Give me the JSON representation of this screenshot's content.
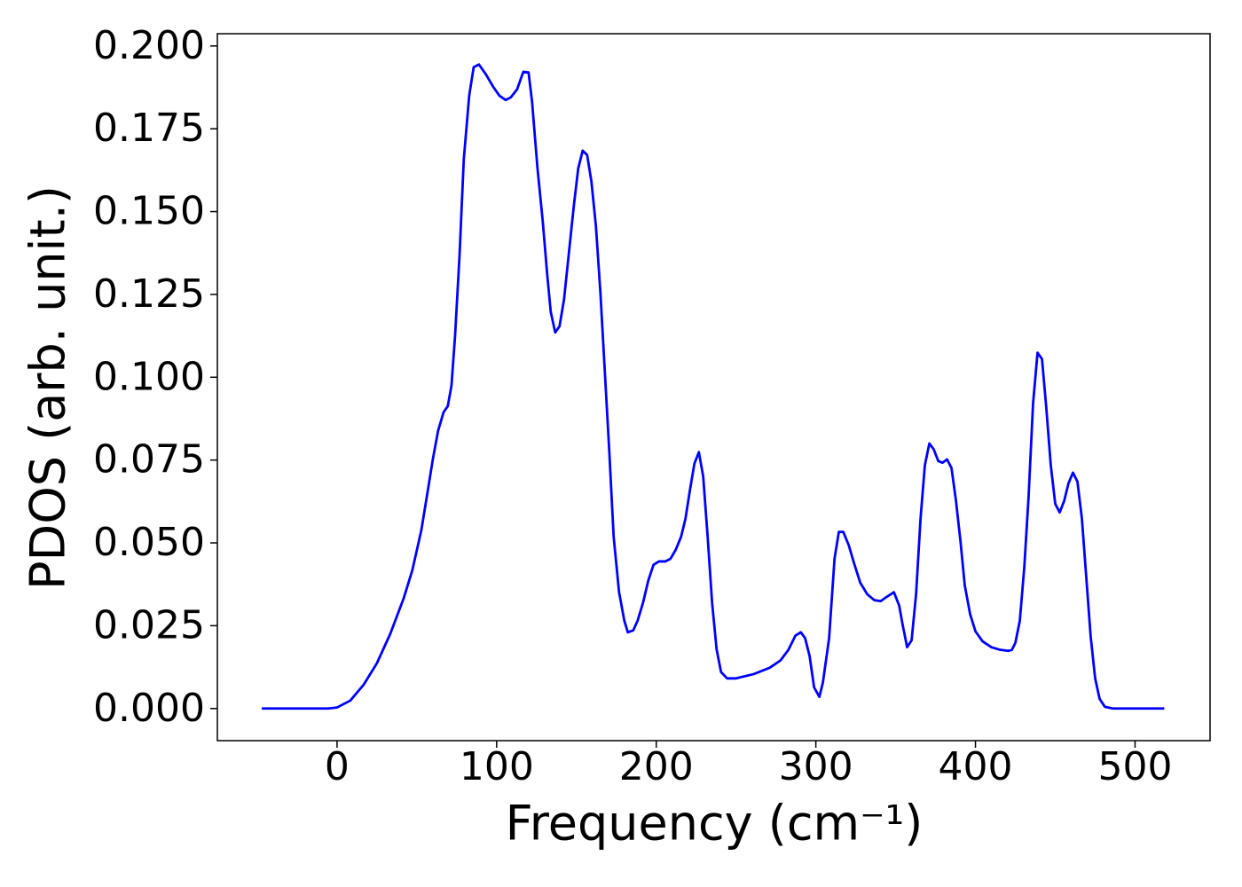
{
  "chart_data": {
    "type": "line",
    "xlabel": "Frequency (cm⁻¹)",
    "ylabel": "PDOS (arb. unit.)",
    "x": [
      -47.2,
      -5.6,
      0,
      8.3,
      16.7,
      25,
      33.3,
      41.7,
      47.2,
      52.8,
      56.7,
      60,
      63.3,
      66.7,
      69.4,
      71.7,
      73.9,
      76.7,
      79.4,
      82.8,
      85.6,
      88.9,
      93.3,
      97.8,
      101.7,
      105.6,
      108.9,
      112.8,
      116.7,
      120,
      122.2,
      125.6,
      128.9,
      131.7,
      133.9,
      136.7,
      139.4,
      142.2,
      145,
      148.3,
      151.1,
      153.9,
      156.7,
      159.4,
      162.2,
      165,
      167.8,
      170.6,
      173.3,
      176.7,
      180,
      182.2,
      185.6,
      188.3,
      191.7,
      195,
      198.3,
      201.7,
      205.6,
      208.9,
      212.2,
      215.6,
      218.3,
      221.1,
      223.9,
      226.7,
      229.4,
      232.2,
      235,
      237.8,
      240.6,
      244.4,
      250,
      261.1,
      271.1,
      277.8,
      282.8,
      287.2,
      290.6,
      293.3,
      296.1,
      298.9,
      302.2,
      304.4,
      308.3,
      311.7,
      314.4,
      317.2,
      320.6,
      323.9,
      327.8,
      332.2,
      336.7,
      340.6,
      344.4,
      348.9,
      352.2,
      354.4,
      357.2,
      360,
      362.8,
      365.6,
      368.3,
      371.1,
      373.9,
      376.7,
      379.4,
      382.2,
      385,
      387.8,
      390.6,
      393.3,
      396.7,
      400,
      404.4,
      410,
      415.6,
      420.6,
      422.8,
      425,
      427.8,
      430.6,
      433.3,
      436.1,
      438.9,
      441.7,
      444.4,
      447.2,
      450,
      452.8,
      455.6,
      458.3,
      461.1,
      463.9,
      466.7,
      469.4,
      472.2,
      475,
      477.8,
      481.1,
      486.1,
      518.3
    ],
    "series": [
      {
        "color": "#0000ff",
        "values": [
          0,
          0,
          0.0003,
          0.0024,
          0.0072,
          0.0137,
          0.0225,
          0.0332,
          0.0418,
          0.0538,
          0.0653,
          0.0752,
          0.0838,
          0.0894,
          0.0913,
          0.0975,
          0.1122,
          0.1363,
          0.1657,
          0.185,
          0.1936,
          0.1944,
          0.1914,
          0.1877,
          0.185,
          0.1837,
          0.1845,
          0.1869,
          0.1922,
          0.192,
          0.1831,
          0.163,
          0.147,
          0.1309,
          0.1197,
          0.1135,
          0.1154,
          0.1234,
          0.1363,
          0.1515,
          0.163,
          0.1684,
          0.1671,
          0.159,
          0.1456,
          0.1256,
          0.1015,
          0.0774,
          0.0519,
          0.0351,
          0.0265,
          0.023,
          0.0236,
          0.0265,
          0.0319,
          0.0386,
          0.0434,
          0.0444,
          0.0444,
          0.0452,
          0.0479,
          0.0519,
          0.0573,
          0.0659,
          0.0739,
          0.0774,
          0.0701,
          0.0519,
          0.0319,
          0.0179,
          0.011,
          0.0091,
          0.0091,
          0.0104,
          0.0123,
          0.0145,
          0.0177,
          0.022,
          0.023,
          0.0212,
          0.0158,
          0.0064,
          0.0035,
          0.0078,
          0.0212,
          0.0452,
          0.0533,
          0.0533,
          0.0493,
          0.0439,
          0.038,
          0.0345,
          0.0327,
          0.0324,
          0.0337,
          0.0351,
          0.0311,
          0.0252,
          0.0185,
          0.0206,
          0.0345,
          0.0573,
          0.0734,
          0.08,
          0.0782,
          0.0747,
          0.0742,
          0.0752,
          0.0726,
          0.0627,
          0.0506,
          0.0372,
          0.0284,
          0.0233,
          0.0203,
          0.0185,
          0.0177,
          0.0174,
          0.0177,
          0.0198,
          0.0265,
          0.0426,
          0.064,
          0.0921,
          0.1074,
          0.1055,
          0.0907,
          0.0734,
          0.0618,
          0.0592,
          0.0627,
          0.068,
          0.0712,
          0.0685,
          0.0573,
          0.0399,
          0.0217,
          0.0091,
          0.0029,
          0.0005,
          0,
          0
        ]
      }
    ],
    "xlim": [
      -75,
      547
    ],
    "ylim": [
      -0.0097,
      0.2037
    ],
    "xticks": [
      0,
      100,
      200,
      300,
      400,
      500
    ],
    "yticks": [
      {
        "value": 0,
        "label": "0.000"
      },
      {
        "value": 0.025,
        "label": "0.025"
      },
      {
        "value": 0.05,
        "label": "0.050"
      },
      {
        "value": 0.075,
        "label": "0.075"
      },
      {
        "value": 0.1,
        "label": "0.100"
      },
      {
        "value": 0.125,
        "label": "0.125"
      },
      {
        "value": 0.15,
        "label": "0.150"
      },
      {
        "value": 0.175,
        "label": "0.175"
      },
      {
        "value": 0.2,
        "label": "0.200"
      }
    ],
    "grid": false
  }
}
